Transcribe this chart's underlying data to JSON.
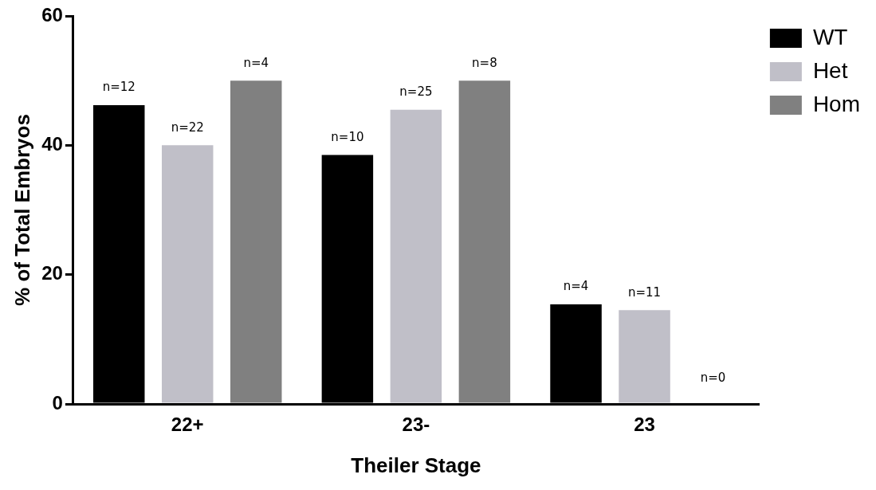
{
  "chart_data": {
    "type": "bar",
    "xlabel": "Theiler Stage",
    "ylabel": "% of Total Embryos",
    "categories": [
      "22+",
      "23-",
      "23"
    ],
    "series": [
      {
        "name": "WT",
        "color": "#000000",
        "values": [
          46.2,
          38.5,
          15.4
        ]
      },
      {
        "name": "Het",
        "color": "#c0bfc8",
        "values": [
          40,
          45.5,
          14.5
        ]
      },
      {
        "name": "Hom",
        "color": "#808080",
        "values": [
          50,
          50,
          0
        ]
      }
    ],
    "annotations": [
      "n=12",
      "n=22",
      "n=4",
      "n=10",
      "n=25",
      "n=8",
      "n=4",
      "n=11",
      "n=0"
    ],
    "ylim": [
      0,
      60
    ],
    "yticks": [
      0,
      20,
      40,
      60
    ],
    "grid": false,
    "legend": "top right"
  }
}
